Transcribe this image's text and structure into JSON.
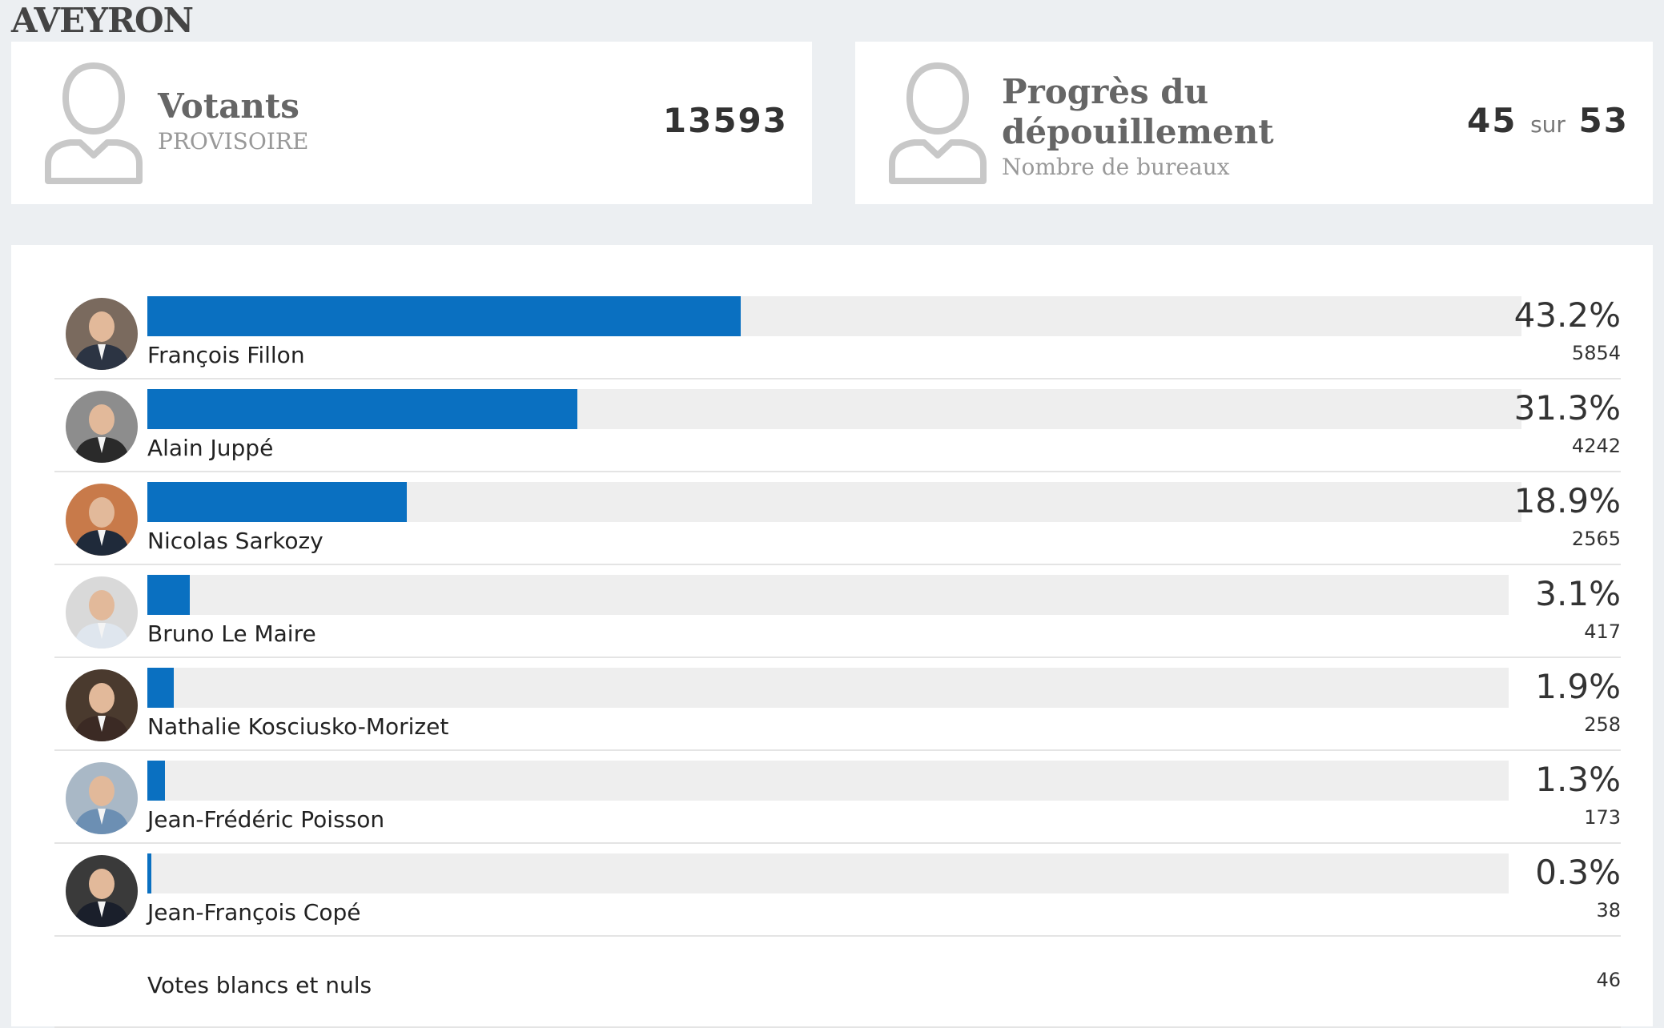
{
  "region": "AVEYRON",
  "votants": {
    "title": "Votants",
    "subtitle": "PROVISOIRE",
    "value": "13593"
  },
  "progres": {
    "title_line1": "Progrès du",
    "title_line2": "dépouillement",
    "subtitle": "Nombre de bureaux",
    "done": "45",
    "sep": "sur",
    "total": "53"
  },
  "colors": {
    "bar": "#0a70c1",
    "track": "#eeeeee"
  },
  "chart_data": {
    "type": "bar",
    "orientation": "horizontal",
    "categories": [
      "François Fillon",
      "Alain Juppé",
      "Nicolas Sarkozy",
      "Bruno Le Maire",
      "Nathalie Kosciusko-Morizet",
      "Jean-Frédéric Poisson",
      "Jean-François Copé"
    ],
    "values": [
      43.2,
      31.3,
      18.9,
      3.1,
      1.9,
      1.3,
      0.3
    ],
    "value_labels": [
      "43.2%",
      "31.3%",
      "18.9%",
      "3.1%",
      "1.9%",
      "1.3%",
      "0.3%"
    ],
    "votes": [
      "5854",
      "4242",
      "2565",
      "417",
      "258",
      "173",
      "38"
    ],
    "xlim": [
      0,
      100
    ]
  },
  "blank_votes": {
    "label": "Votes blancs et nuls",
    "value": "46"
  }
}
